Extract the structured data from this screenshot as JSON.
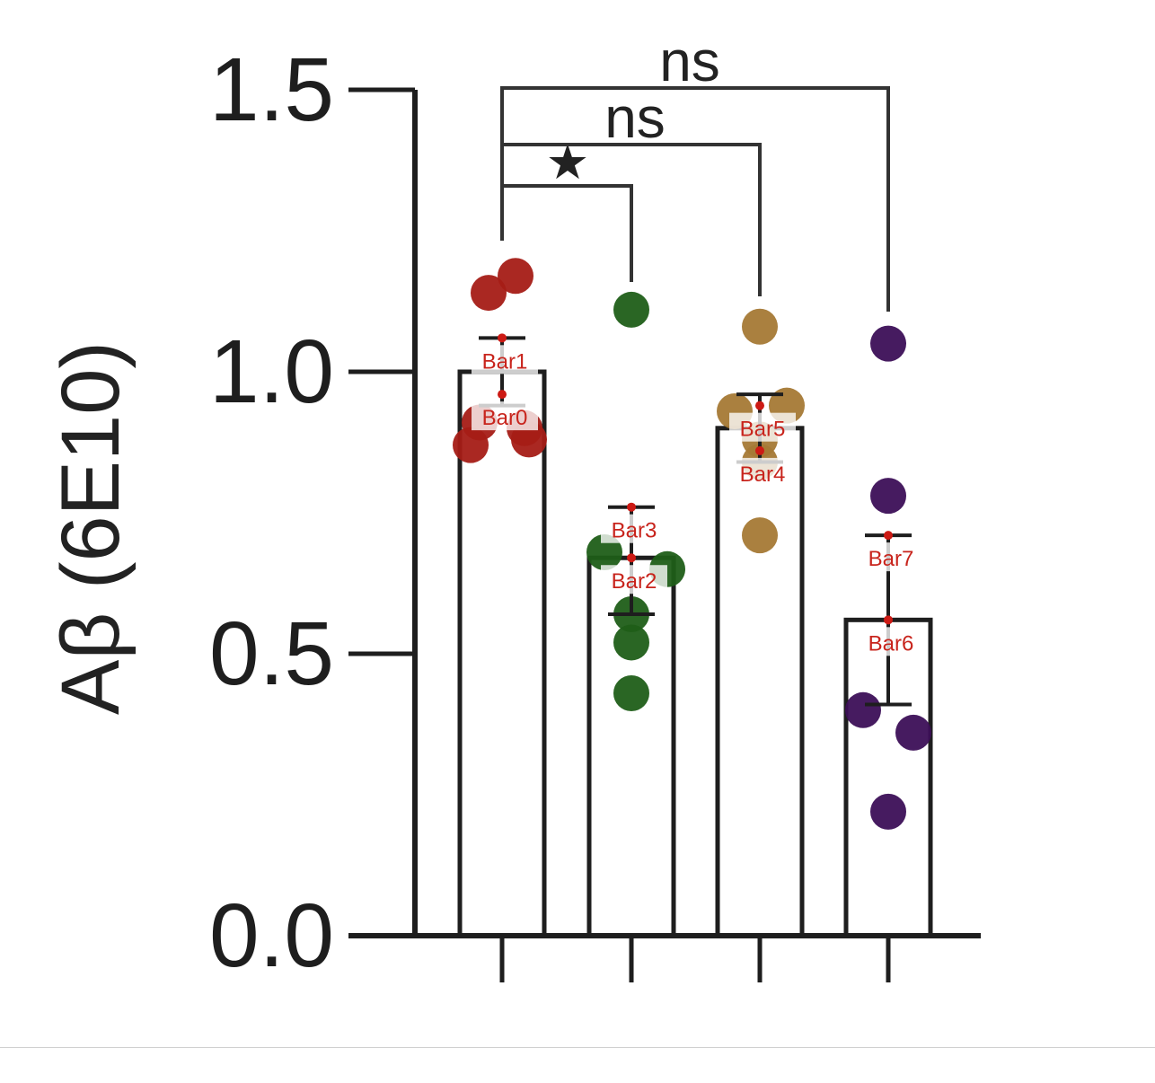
{
  "chart_data": {
    "type": "bar",
    "ylabel": "Aβ (6E10)",
    "ylim": [
      0,
      1.5
    ],
    "yticks": [
      "0.0",
      "0.5",
      "1.0",
      "1.5"
    ],
    "categories": [
      "",
      "",
      "",
      ""
    ],
    "series": [
      {
        "values": [
          1.0,
          0.67,
          0.9,
          0.56
        ],
        "error_upper": [
          1.06,
          0.76,
          0.96,
          0.71
        ],
        "error_lower": [
          0.94,
          0.57,
          0.84,
          0.41
        ],
        "colors": [
          "#a51c16",
          "#1f5e18",
          "#a57935",
          "#3c0f57"
        ],
        "points": [
          [
            1.17,
            1.14,
            0.91,
            0.9,
            0.87,
            0.88
          ],
          [
            1.11,
            0.68,
            0.57,
            0.52,
            0.43,
            0.65
          ],
          [
            1.08,
            0.93,
            0.88,
            0.84,
            0.71,
            0.94
          ],
          [
            1.05,
            0.78,
            0.4,
            0.36,
            0.22
          ]
        ]
      }
    ],
    "bar_labels": [
      {
        "text": "Bar0",
        "value": 0.96,
        "bar": 0
      },
      {
        "text": "Bar1",
        "value": 1.06,
        "bar": 0
      },
      {
        "text": "Bar2",
        "value": 0.67,
        "bar": 1
      },
      {
        "text": "Bar3",
        "value": 0.76,
        "bar": 1
      },
      {
        "text": "Bar4",
        "value": 0.86,
        "bar": 2
      },
      {
        "text": "Bar5",
        "value": 0.94,
        "bar": 2
      },
      {
        "text": "Bar6",
        "value": 0.56,
        "bar": 3
      },
      {
        "text": "Bar7",
        "value": 0.71,
        "bar": 3
      }
    ],
    "significance": [
      {
        "from": 0,
        "to": 1,
        "label": "★"
      },
      {
        "from": 0,
        "to": 2,
        "label": "ns"
      },
      {
        "from": 0,
        "to": 3,
        "label": "ns"
      }
    ],
    "grid": false,
    "legend": "none"
  }
}
